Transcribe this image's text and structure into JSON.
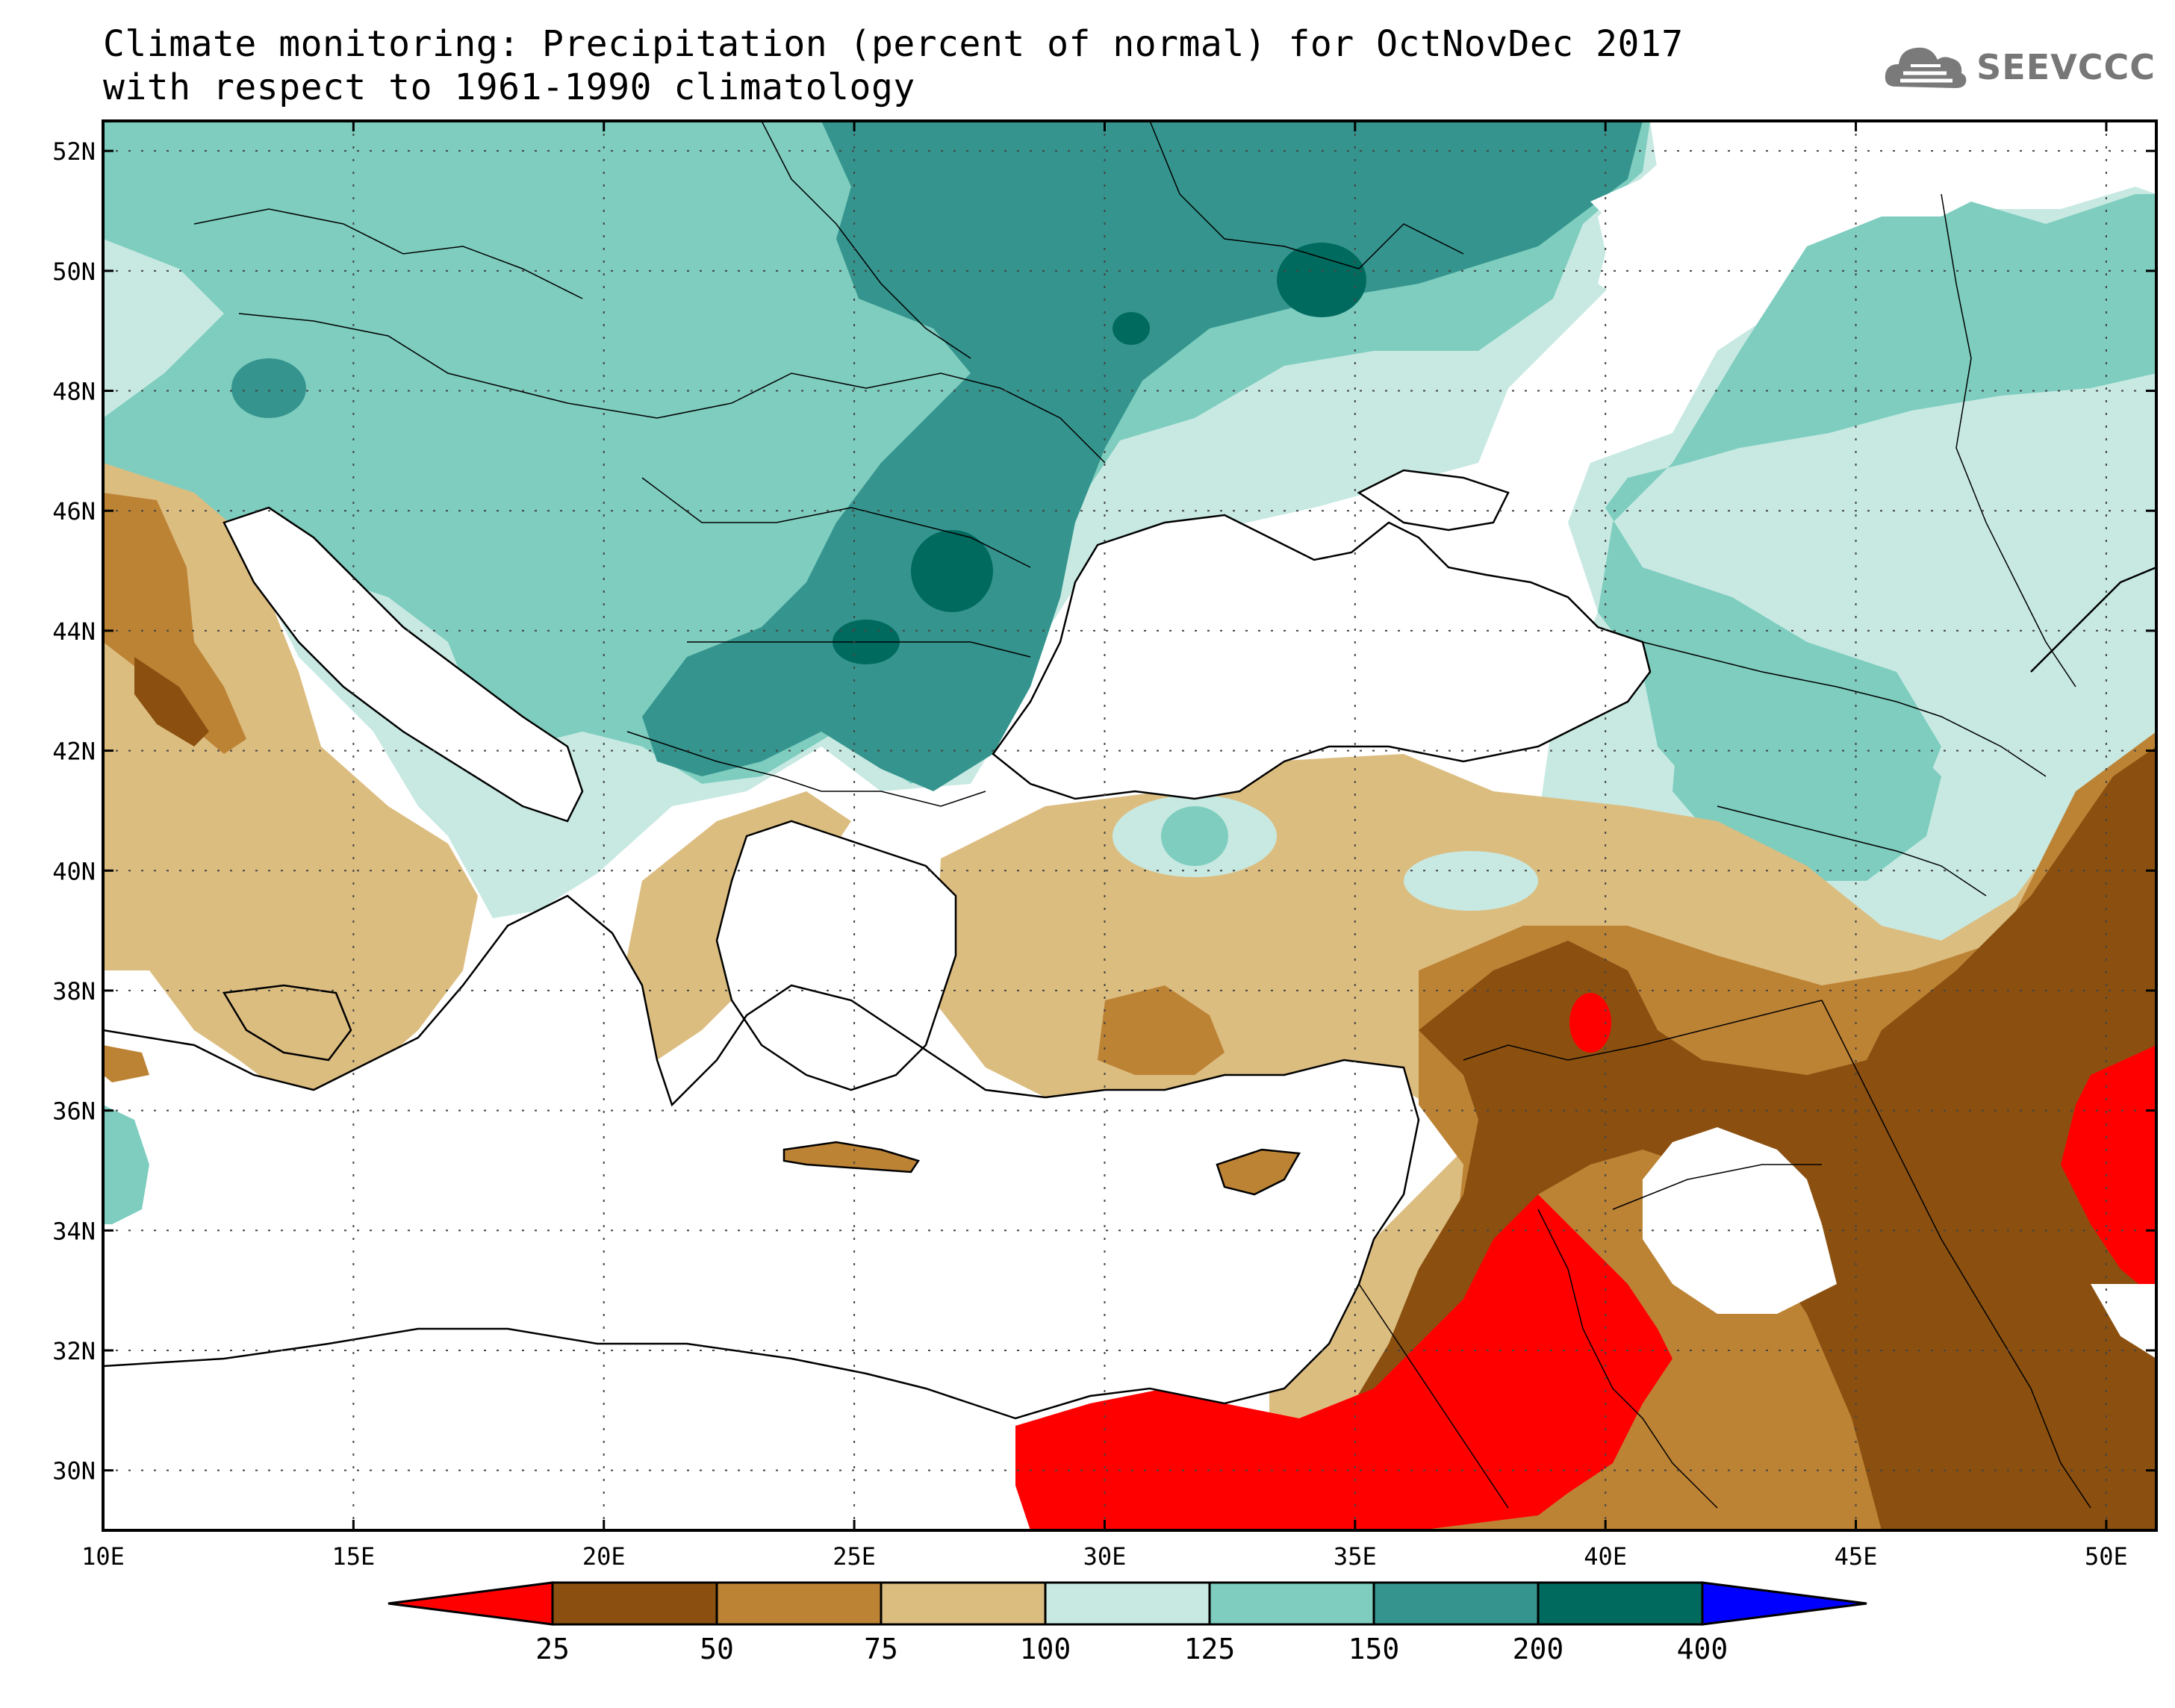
{
  "title": {
    "line1": "Climate monitoring: Precipitation (percent of normal) for OctNovDec 2017",
    "line2": "with respect to 1961-1990 climatology"
  },
  "logo": {
    "text": "SEEVCCC",
    "icon": "cloud-logo-icon"
  },
  "map": {
    "lon_range": [
      10,
      51
    ],
    "lat_range": [
      29,
      52.5
    ],
    "x_ticks": [
      {
        "lon": 10,
        "label": "10E"
      },
      {
        "lon": 15,
        "label": "15E"
      },
      {
        "lon": 20,
        "label": "20E"
      },
      {
        "lon": 25,
        "label": "25E"
      },
      {
        "lon": 30,
        "label": "30E"
      },
      {
        "lon": 35,
        "label": "35E"
      },
      {
        "lon": 40,
        "label": "40E"
      },
      {
        "lon": 45,
        "label": "45E"
      },
      {
        "lon": 50,
        "label": "50E"
      }
    ],
    "y_ticks": [
      {
        "lat": 30,
        "label": "30N"
      },
      {
        "lat": 32,
        "label": "32N"
      },
      {
        "lat": 34,
        "label": "34N"
      },
      {
        "lat": 36,
        "label": "36N"
      },
      {
        "lat": 38,
        "label": "38N"
      },
      {
        "lat": 40,
        "label": "40N"
      },
      {
        "lat": 42,
        "label": "42N"
      },
      {
        "lat": 44,
        "label": "44N"
      },
      {
        "lat": 46,
        "label": "46N"
      },
      {
        "lat": 48,
        "label": "48N"
      },
      {
        "lat": 50,
        "label": "50N"
      },
      {
        "lat": 52,
        "label": "52N"
      }
    ],
    "grid": true
  },
  "colorbar": {
    "levels": [
      "25",
      "50",
      "75",
      "100",
      "125",
      "150",
      "200",
      "400"
    ],
    "colors": [
      "#ff0000",
      "#8b5010",
      "#bd8335",
      "#dcbd80",
      "#c7e9e2",
      "#7ecdbf",
      "#35958e",
      "#006a5e",
      "#0000ff"
    ]
  }
}
